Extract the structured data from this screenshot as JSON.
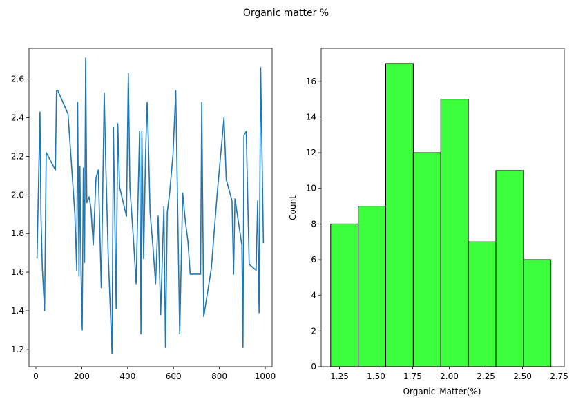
{
  "figure": {
    "suptitle": "Organic matter %"
  },
  "chart_data": [
    {
      "type": "line",
      "title": "",
      "xlabel": "",
      "ylabel": "",
      "xlim": [
        -30,
        1030
      ],
      "ylim": [
        1.11,
        2.76
      ],
      "xticks": [
        0,
        200,
        400,
        600,
        800,
        1000
      ],
      "yticks": [
        1.2,
        1.4,
        1.6,
        1.8,
        2.0,
        2.2,
        2.4,
        2.6
      ],
      "grid": false,
      "color": "#1f77b4",
      "series": [
        {
          "x": [
            5,
            18,
            22,
            28,
            38,
            45,
            85,
            90,
            96,
            140,
            170,
            178,
            182,
            188,
            192,
            197,
            202,
            207,
            212,
            217,
            222,
            232,
            240,
            250,
            262,
            272,
            285,
            298,
            305,
            315,
            332,
            338,
            350,
            357,
            365,
            395,
            403,
            410,
            426,
            437,
            452,
            458,
            462,
            470,
            478,
            485,
            490,
            498,
            510,
            522,
            533,
            544,
            558,
            565,
            573,
            583,
            598,
            610,
            627,
            640,
            652,
            663,
            673,
            688,
            718,
            723,
            732,
            765,
            790,
            820,
            830,
            855,
            862,
            868,
            898,
            903,
            907,
            917,
            930,
            960,
            967,
            973,
            980,
            992
          ],
          "y": [
            1.67,
            2.43,
            1.9,
            1.62,
            1.4,
            2.22,
            2.13,
            2.54,
            2.54,
            2.42,
            1.9,
            1.61,
            2.48,
            1.58,
            2.15,
            1.59,
            1.3,
            2.14,
            1.65,
            2.71,
            1.96,
            1.99,
            1.93,
            1.74,
            2.09,
            2.13,
            1.52,
            2.53,
            2.15,
            1.7,
            1.18,
            2.35,
            1.41,
            2.37,
            2.04,
            1.89,
            2.63,
            2.04,
            1.76,
            1.54,
            2.33,
            1.28,
            2.33,
            1.67,
            2.2,
            2.48,
            2.3,
            1.91,
            1.74,
            1.54,
            1.89,
            1.38,
            1.94,
            1.21,
            1.91,
            2.01,
            2.21,
            2.54,
            1.28,
            2.01,
            1.86,
            1.76,
            1.59,
            1.59,
            1.59,
            2.48,
            1.37,
            1.62,
            2.0,
            2.4,
            2.08,
            1.97,
            1.59,
            1.98,
            1.74,
            1.21,
            2.31,
            2.33,
            1.64,
            1.61,
            1.97,
            1.39,
            2.66,
            1.75
          ]
        }
      ]
    },
    {
      "type": "bar",
      "title": "",
      "xlabel": "Organic_Matter(%)",
      "ylabel": "Count",
      "xlim": [
        1.125,
        2.785
      ],
      "ylim": [
        0,
        17.85
      ],
      "xticks": [
        "1.25",
        "1.50",
        "1.75",
        "2.00",
        "2.25",
        "2.50",
        "2.75"
      ],
      "yticks": [
        "0",
        "2",
        "4",
        "6",
        "8",
        "10",
        "12",
        "14",
        "16"
      ],
      "grid": false,
      "color": "#3bff3b",
      "bin_edges": [
        1.19,
        1.378,
        1.566,
        1.754,
        1.942,
        2.13,
        2.318,
        2.506,
        2.694
      ],
      "values": [
        8,
        9,
        17,
        12,
        15,
        7,
        11,
        6
      ]
    }
  ]
}
